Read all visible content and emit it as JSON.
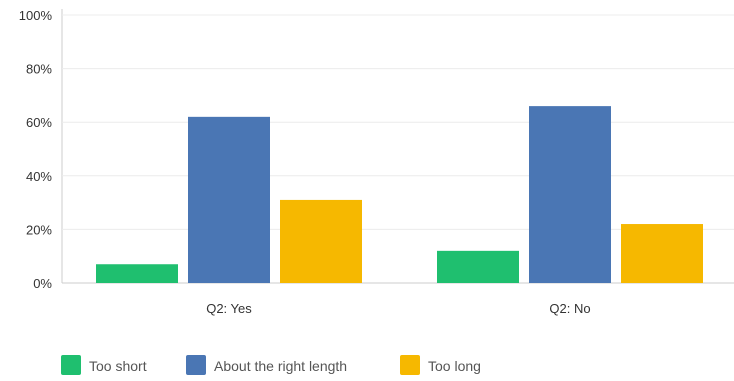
{
  "chart_data": {
    "type": "bar",
    "title": "",
    "xlabel": "",
    "ylabel": "",
    "ylim": [
      0,
      100
    ],
    "y_ticks": [
      "0%",
      "20%",
      "40%",
      "60%",
      "80%",
      "100%"
    ],
    "y_tick_values": [
      0,
      20,
      40,
      60,
      80,
      100
    ],
    "categories": [
      "Q2: Yes",
      "Q2: No"
    ],
    "series": [
      {
        "name": "Too short",
        "color": "#1fbf6f",
        "values": [
          7,
          12
        ]
      },
      {
        "name": "About the right length",
        "color": "#4a76b4",
        "values": [
          62,
          66
        ]
      },
      {
        "name": "Too long",
        "color": "#f6b800",
        "values": [
          31,
          22
        ]
      }
    ],
    "grid": true,
    "legend_position": "bottom-left"
  }
}
